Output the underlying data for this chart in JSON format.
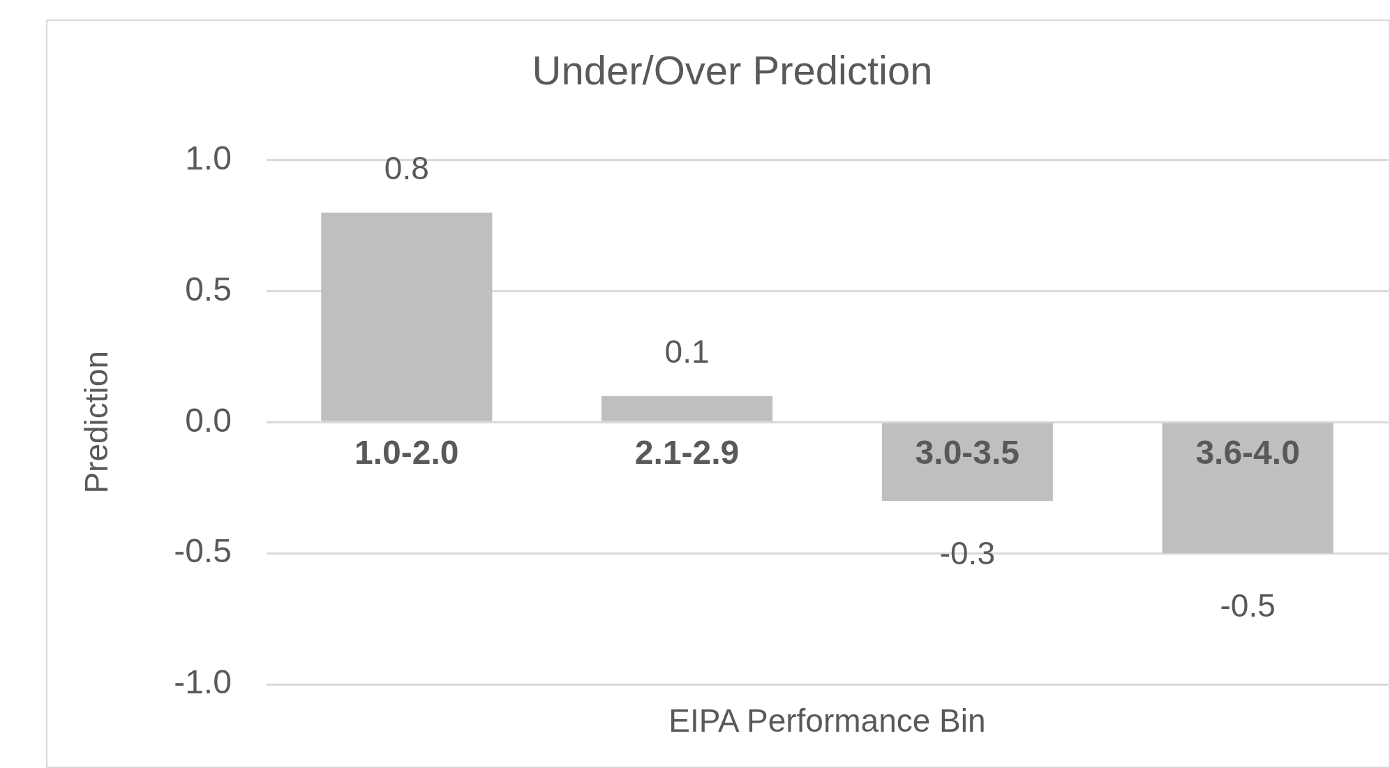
{
  "chart_data": {
    "type": "bar",
    "title": "Under/Over Prediction",
    "xlabel": "EIPA Performance Bin",
    "ylabel": "Prediction",
    "categories": [
      "1.0-2.0",
      "2.1-2.9",
      "3.0-3.5",
      "3.6-4.0"
    ],
    "values": [
      0.8,
      0.1,
      -0.3,
      -0.5
    ],
    "color": "#bfbfbf",
    "ylim": [
      -1.0,
      1.0
    ],
    "yticks": [
      {
        "value": -1,
        "label": "-1.0"
      },
      {
        "value": -0.5,
        "label": "-0.5"
      },
      {
        "value": 0,
        "label": "0.0"
      },
      {
        "value": 0.5,
        "label": "0.5"
      },
      {
        "value": 1,
        "label": "1.0"
      }
    ],
    "grid": "y",
    "legend": false,
    "data_labels": true
  }
}
